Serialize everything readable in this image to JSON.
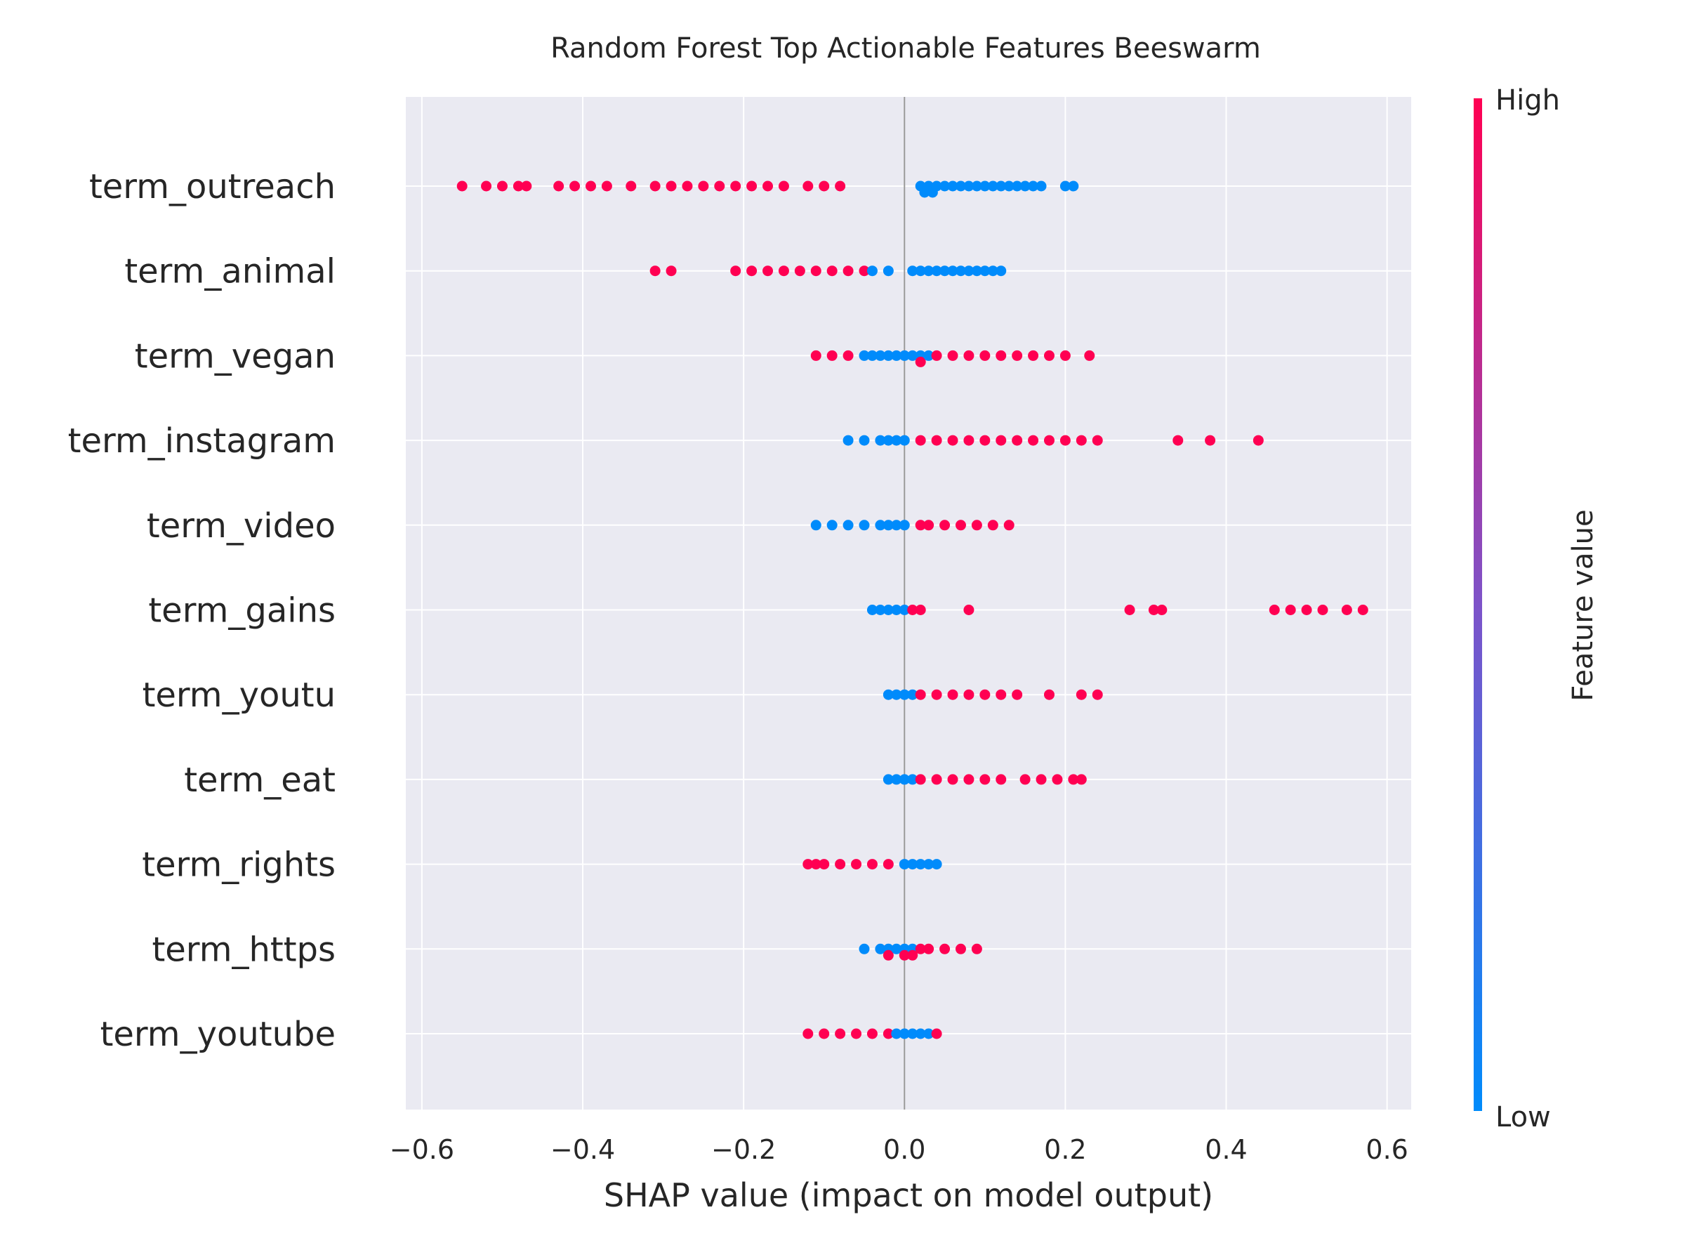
{
  "chart_data": {
    "type": "scatter",
    "subtype": "beeswarm",
    "title": "Random Forest Top Actionable Features Beeswarm",
    "xlabel": "SHAP value (impact on model output)",
    "xlim": [
      -0.62,
      0.63
    ],
    "xticks": [
      -0.6,
      -0.4,
      -0.2,
      0.0,
      0.2,
      0.4,
      0.6
    ],
    "xtick_labels": [
      "−0.6",
      "−0.4",
      "−0.2",
      "0.0",
      "0.2",
      "0.4",
      "0.6"
    ],
    "grid": true,
    "colorbar": {
      "label": "Feature value",
      "high_label": "High",
      "low_label": "Low",
      "low_color": "#008bfb",
      "high_color": "#ff0052"
    },
    "features": [
      {
        "name": "term_outreach",
        "low_values": [
          0.02,
          0.025,
          0.03,
          0.035,
          0.04,
          0.05,
          0.06,
          0.07,
          0.08,
          0.09,
          0.1,
          0.11,
          0.12,
          0.13,
          0.14,
          0.15,
          0.16,
          0.17,
          0.2,
          0.21
        ],
        "high_values": [
          -0.55,
          -0.52,
          -0.5,
          -0.48,
          -0.47,
          -0.43,
          -0.41,
          -0.39,
          -0.37,
          -0.34,
          -0.31,
          -0.29,
          -0.27,
          -0.25,
          -0.23,
          -0.21,
          -0.19,
          -0.17,
          -0.15,
          -0.12,
          -0.1,
          -0.08
        ]
      },
      {
        "name": "term_animal",
        "low_values": [
          -0.04,
          -0.02,
          0.01,
          0.02,
          0.03,
          0.04,
          0.05,
          0.06,
          0.07,
          0.08,
          0.09,
          0.1,
          0.11,
          0.12
        ],
        "high_values": [
          -0.31,
          -0.29,
          -0.21,
          -0.19,
          -0.17,
          -0.15,
          -0.13,
          -0.11,
          -0.09,
          -0.07,
          -0.05
        ]
      },
      {
        "name": "term_vegan",
        "low_values": [
          -0.05,
          -0.04,
          -0.03,
          -0.02,
          -0.01,
          0.0,
          0.01,
          0.02,
          0.03
        ],
        "high_values": [
          -0.11,
          -0.09,
          -0.07,
          0.02,
          0.04,
          0.06,
          0.08,
          0.1,
          0.12,
          0.14,
          0.16,
          0.18,
          0.2,
          0.23
        ]
      },
      {
        "name": "term_instagram",
        "low_values": [
          -0.07,
          -0.05,
          -0.03,
          -0.02,
          -0.01,
          0.0
        ],
        "high_values": [
          0.02,
          0.04,
          0.06,
          0.08,
          0.1,
          0.12,
          0.14,
          0.16,
          0.18,
          0.2,
          0.22,
          0.24,
          0.34,
          0.38,
          0.44
        ]
      },
      {
        "name": "term_video",
        "low_values": [
          -0.11,
          -0.09,
          -0.07,
          -0.05,
          -0.03,
          -0.02,
          -0.01,
          0.0
        ],
        "high_values": [
          0.02,
          0.03,
          0.05,
          0.07,
          0.09,
          0.11,
          0.13
        ]
      },
      {
        "name": "term_gains",
        "low_values": [
          -0.04,
          -0.03,
          -0.02,
          -0.01,
          0.0
        ],
        "high_values": [
          0.01,
          0.02,
          0.08,
          0.28,
          0.31,
          0.32,
          0.46,
          0.48,
          0.5,
          0.52,
          0.55,
          0.57
        ]
      },
      {
        "name": "term_youtu",
        "low_values": [
          -0.02,
          -0.01,
          0.0,
          0.01
        ],
        "high_values": [
          0.02,
          0.04,
          0.06,
          0.08,
          0.1,
          0.12,
          0.14,
          0.18,
          0.22,
          0.24
        ]
      },
      {
        "name": "term_eat",
        "low_values": [
          -0.02,
          -0.01,
          0.0,
          0.01
        ],
        "high_values": [
          0.02,
          0.04,
          0.06,
          0.08,
          0.1,
          0.12,
          0.15,
          0.17,
          0.19,
          0.21,
          0.22
        ]
      },
      {
        "name": "term_rights",
        "low_values": [
          0.0,
          0.01,
          0.02,
          0.03,
          0.04
        ],
        "high_values": [
          -0.12,
          -0.11,
          -0.1,
          -0.08,
          -0.06,
          -0.04,
          -0.02
        ]
      },
      {
        "name": "term_https",
        "low_values": [
          -0.05,
          -0.03,
          -0.02,
          -0.01,
          0.0,
          0.01
        ],
        "high_values": [
          -0.02,
          0.0,
          0.01,
          0.02,
          0.03,
          0.05,
          0.07,
          0.09
        ]
      },
      {
        "name": "term_youtube",
        "low_values": [
          -0.01,
          0.0,
          0.01,
          0.02,
          0.03
        ],
        "high_values": [
          -0.12,
          -0.1,
          -0.08,
          -0.06,
          -0.04,
          -0.02,
          0.04
        ]
      }
    ]
  }
}
